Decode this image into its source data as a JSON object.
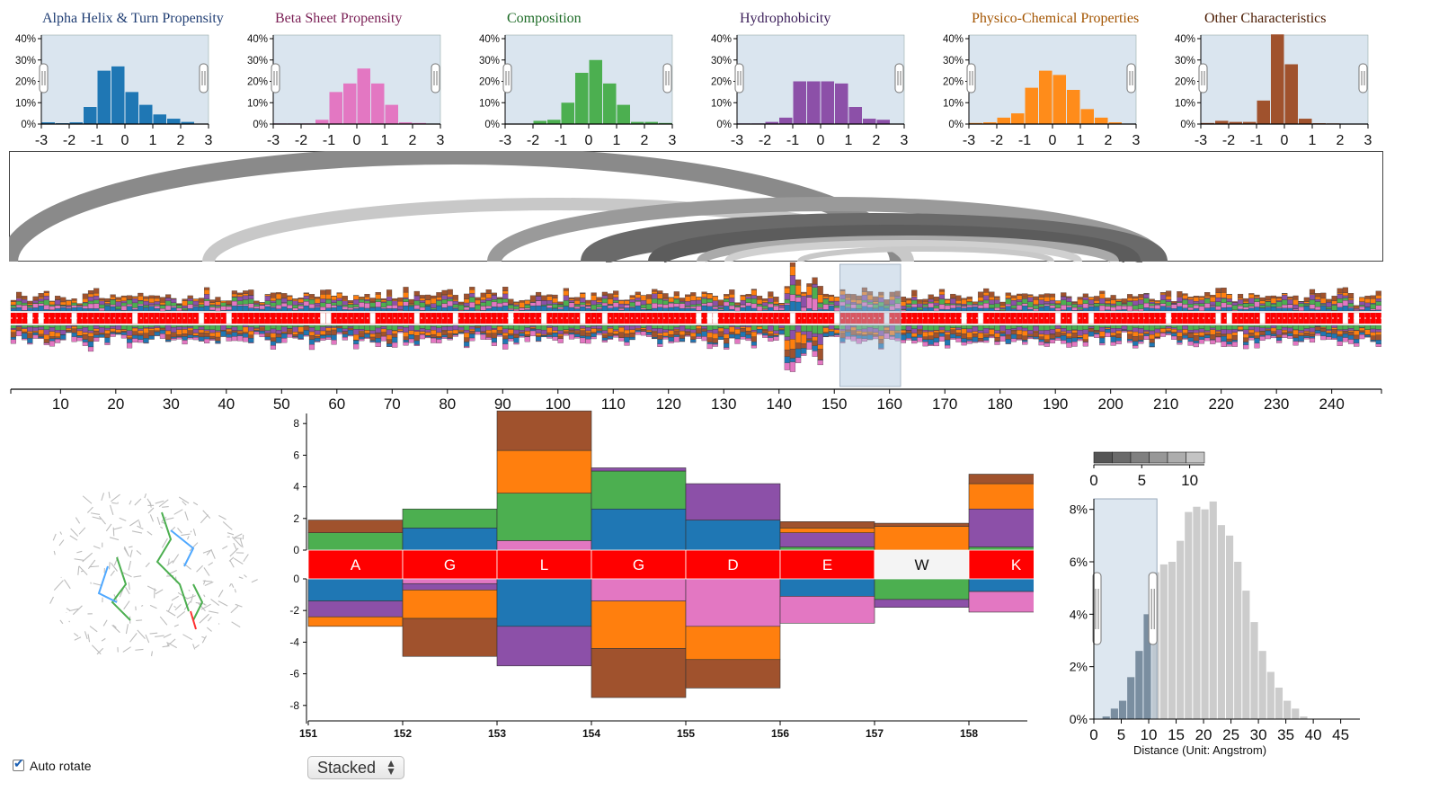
{
  "histograms": {
    "x_ticks": [
      "-3",
      "-2",
      "-1",
      "0",
      "1",
      "2",
      "3"
    ],
    "y_ticks": [
      "0%",
      "10%",
      "20%",
      "30%",
      "40%"
    ],
    "bin_centers": [
      -2.75,
      -2.25,
      -1.75,
      -1.25,
      -0.75,
      -0.25,
      0.25,
      0.75,
      1.25,
      1.75,
      2.25,
      2.75
    ],
    "items": [
      {
        "title": "Alpha Helix & Turn Propensity",
        "title_color": "#1f3d73",
        "color": "#1f77b4",
        "values": [
          0.8,
          0.4,
          0.8,
          8,
          25,
          27,
          15,
          9,
          4.5,
          2.5,
          1,
          0
        ]
      },
      {
        "title": "Beta Sheet Propensity",
        "title_color": "#7a1f55",
        "color": "#e377c2",
        "values": [
          0.3,
          0.3,
          0.3,
          2,
          15,
          19,
          26,
          19,
          9,
          0.8,
          0.5,
          0
        ]
      },
      {
        "title": "Composition",
        "title_color": "#1d6b26",
        "color": "#4caf50",
        "values": [
          0.2,
          0.2,
          1.5,
          2,
          10,
          24,
          30,
          19,
          9,
          1,
          1,
          0.5
        ]
      },
      {
        "title": "Hydrophobicity",
        "title_color": "#3c1f5a",
        "color": "#8c50a8",
        "values": [
          0.3,
          0.3,
          1,
          3,
          20,
          20,
          20,
          19,
          8,
          2.5,
          2,
          0
        ]
      },
      {
        "title": "Physico-Chemical Properties",
        "title_color": "#a35400",
        "color": "#ff8c1a",
        "values": [
          0.5,
          0.8,
          3,
          5,
          17,
          25,
          23,
          16,
          7,
          3,
          0.8,
          0
        ]
      },
      {
        "title": "Other Characteristics",
        "title_color": "#4a1a00",
        "color": "#a0522d",
        "values": [
          0.5,
          1.5,
          1,
          1,
          11,
          42,
          28,
          2.5,
          0.4,
          0.3,
          0.2,
          0.2
        ]
      }
    ]
  },
  "overview": {
    "x_ticks": [
      "10",
      "20",
      "30",
      "40",
      "50",
      "60",
      "70",
      "80",
      "90",
      "100",
      "110",
      "120",
      "130",
      "140",
      "150",
      "160",
      "170",
      "180",
      "190",
      "200",
      "210",
      "220",
      "230",
      "240"
    ],
    "n_residues": 248,
    "selection": [
      151,
      162
    ],
    "colors": [
      "#1f77b4",
      "#e377c2",
      "#4caf50",
      "#8c50a8",
      "#ff7f0e",
      "#a0522d"
    ]
  },
  "chart_data": {
    "type": "bar",
    "categories": [
      "151",
      "152",
      "153",
      "154",
      "155",
      "156",
      "157",
      "158"
    ],
    "residue_labels": [
      "A",
      "G",
      "L",
      "G",
      "D",
      "E",
      "W",
      "K"
    ],
    "y_ticks": [
      "8",
      "6",
      "4",
      "2",
      "0",
      "0",
      "-2",
      "-4",
      "-6",
      "-8"
    ],
    "ylim": [
      -8,
      8
    ],
    "series": [
      {
        "color": "#1f77b4",
        "values": [
          -1.4,
          1.4,
          -3,
          2.6,
          1.9,
          -1.1,
          0,
          -0.8
        ]
      },
      {
        "color": "#e377c2",
        "values": [
          0,
          -0.3,
          0.6,
          -1.4,
          -3.0,
          -1.7,
          0,
          -1.3
        ]
      },
      {
        "color": "#4caf50",
        "values": [
          1.1,
          1.2,
          3,
          2.4,
          0,
          0.2,
          -1.3,
          0.2
        ]
      },
      {
        "color": "#8c50a8",
        "values": [
          -1.0,
          -0.4,
          -2.5,
          0.2,
          2.3,
          0.9,
          -0.5,
          2.4
        ]
      },
      {
        "color": "#ff7f0e",
        "values": [
          -0.6,
          -1.8,
          2.7,
          -3.0,
          -2.1,
          0.3,
          1.5,
          1.6
        ]
      },
      {
        "color": "#a0522d",
        "values": [
          0.8,
          -2.4,
          2.5,
          -3.1,
          -1.8,
          0.4,
          0.2,
          0.6
        ]
      }
    ],
    "controls": {
      "auto_rotate": "Auto rotate",
      "mode": "Stacked"
    }
  },
  "distance_histogram": {
    "x_ticks": [
      "0",
      "5",
      "10",
      "15",
      "20",
      "25",
      "30",
      "35",
      "40",
      "45"
    ],
    "y_ticks": [
      "0%",
      "2%",
      "4%",
      "6%",
      "8%"
    ],
    "xlabel": "Distance (Unit: Angstrom)",
    "bin_width": 1.5,
    "values": [
      0,
      0.1,
      0.4,
      0.7,
      1.6,
      2.6,
      4.0,
      5.6,
      5.9,
      6.0,
      6.8,
      7.9,
      8.1,
      8.0,
      8.3,
      7.4,
      7.0,
      6.0,
      4.9,
      3.7,
      2.6,
      1.8,
      1.2,
      0.7,
      0.4,
      0.1
    ],
    "selection_upper": 11.5,
    "legend_ticks": [
      "0",
      "5",
      "10"
    ]
  }
}
